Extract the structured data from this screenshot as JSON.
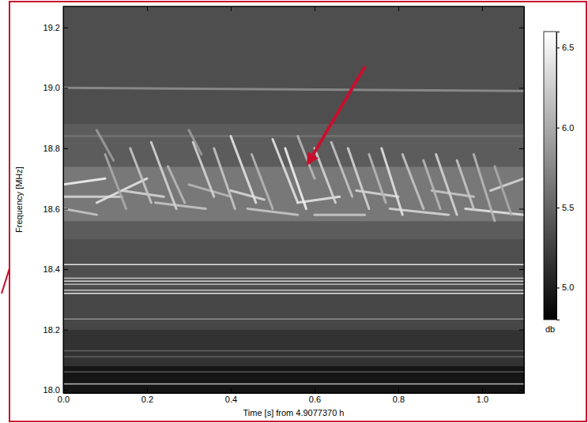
{
  "chart_data": {
    "type": "heatmap",
    "xlabel": "Time [s] from 4.9077370 h",
    "ylabel": "Frequency [MHz]",
    "xlim": [
      0,
      1.1
    ],
    "ylim": [
      17.99,
      19.27
    ],
    "xticks": [
      {
        "value": 0,
        "label": "0.0"
      },
      0.2,
      0.4,
      0.6,
      0.8,
      {
        "value": 1,
        "label": "1.0"
      }
    ],
    "yticks": [
      {
        "value": 18,
        "label": "18.0"
      },
      18.2,
      18.4,
      18.6,
      18.8,
      {
        "value": 19,
        "label": "19.0"
      },
      19.2
    ],
    "heatmap": {
      "x_edges": [
        0,
        1.1
      ],
      "y_edges": [
        17.99,
        18.08,
        18.2,
        18.32,
        18.5,
        18.56,
        18.74,
        18.88,
        19.27
      ],
      "values": [
        [
          4.95
        ],
        [
          5.15
        ],
        [
          5.3
        ],
        [
          5.35
        ],
        [
          5.45
        ],
        [
          5.65
        ],
        [
          5.45
        ],
        [
          5.35
        ]
      ]
    },
    "lines": [
      {
        "f": 18.415,
        "level": 6.4
      },
      {
        "f": 18.37,
        "level": 6.2
      },
      {
        "f": 18.36,
        "level": 6.3
      },
      {
        "f": 18.35,
        "level": 6.1
      },
      {
        "f": 18.33,
        "level": 6.2
      },
      {
        "f": 18.32,
        "level": 6.4
      },
      {
        "f": 18.235,
        "level": 5.8
      },
      {
        "f": 18.13,
        "level": 5.5
      },
      {
        "f": 18.11,
        "level": 5.5
      },
      {
        "f": 18.06,
        "level": 5.4
      },
      {
        "f": 18.02,
        "level": 6.1
      }
    ],
    "bursts": [
      {
        "t": [
          0.0,
          1.1
        ],
        "f": [
          18.84,
          18.84
        ],
        "level": 5.6
      },
      {
        "t": [
          0.0,
          1.1
        ],
        "f": [
          19.0,
          18.99
        ],
        "level": 5.8
      },
      {
        "t": [
          0.0,
          0.1
        ],
        "f": [
          18.68,
          18.7
        ],
        "level": 6.5
      },
      {
        "t": [
          0.0,
          0.14
        ],
        "f": [
          18.64,
          18.64
        ],
        "level": 6.3
      },
      {
        "t": [
          0.0,
          0.08
        ],
        "f": [
          18.6,
          18.58
        ],
        "level": 6.2
      },
      {
        "t": [
          0.08,
          0.2
        ],
        "f": [
          18.62,
          18.7
        ],
        "level": 6.4
      },
      {
        "t": [
          0.14,
          0.24
        ],
        "f": [
          18.66,
          18.64
        ],
        "level": 6.3
      },
      {
        "t": [
          0.22,
          0.34
        ],
        "f": [
          18.62,
          18.6
        ],
        "level": 6.2
      },
      {
        "t": [
          0.3,
          0.4
        ],
        "f": [
          18.68,
          18.64
        ],
        "level": 6.1
      },
      {
        "t": [
          0.4,
          0.48
        ],
        "f": [
          18.66,
          18.63
        ],
        "level": 6.3
      },
      {
        "t": [
          0.44,
          0.56
        ],
        "f": [
          18.6,
          18.58
        ],
        "level": 6.2
      },
      {
        "t": [
          0.56,
          0.66
        ],
        "f": [
          18.62,
          18.64
        ],
        "level": 6.4
      },
      {
        "t": [
          0.6,
          0.72
        ],
        "f": [
          18.58,
          18.58
        ],
        "level": 6.2
      },
      {
        "t": [
          0.7,
          0.8
        ],
        "f": [
          18.66,
          18.64
        ],
        "level": 6.3
      },
      {
        "t": [
          0.78,
          0.92
        ],
        "f": [
          18.6,
          18.58
        ],
        "level": 6.3
      },
      {
        "t": [
          0.88,
          0.98
        ],
        "f": [
          18.66,
          18.64
        ],
        "level": 6.2
      },
      {
        "t": [
          0.96,
          1.1
        ],
        "f": [
          18.6,
          18.58
        ],
        "level": 6.4
      },
      {
        "t": [
          1.02,
          1.1
        ],
        "f": [
          18.66,
          18.7
        ],
        "level": 6.3
      },
      {
        "t": [
          0.08,
          0.12
        ],
        "f": [
          18.86,
          18.76
        ],
        "level": 5.9
      },
      {
        "t": [
          0.3,
          0.33
        ],
        "f": [
          18.86,
          18.78
        ],
        "level": 5.9
      },
      {
        "t": [
          0.1,
          0.15
        ],
        "f": [
          18.78,
          18.6
        ],
        "level": 6.0
      },
      {
        "t": [
          0.16,
          0.21
        ],
        "f": [
          18.8,
          18.62
        ],
        "level": 6.2
      },
      {
        "t": [
          0.21,
          0.27
        ],
        "f": [
          18.82,
          18.6
        ],
        "level": 6.3
      },
      {
        "t": [
          0.25,
          0.29
        ],
        "f": [
          18.74,
          18.62
        ],
        "level": 6.1
      },
      {
        "t": [
          0.31,
          0.36
        ],
        "f": [
          18.82,
          18.64
        ],
        "level": 6.3
      },
      {
        "t": [
          0.36,
          0.41
        ],
        "f": [
          18.8,
          18.6
        ],
        "level": 6.2
      },
      {
        "t": [
          0.4,
          0.46
        ],
        "f": [
          18.84,
          18.62
        ],
        "level": 6.4
      },
      {
        "t": [
          0.45,
          0.5
        ],
        "f": [
          18.78,
          18.6
        ],
        "level": 6.1
      },
      {
        "t": [
          0.5,
          0.56
        ],
        "f": [
          18.83,
          18.62
        ],
        "level": 6.4
      },
      {
        "t": [
          0.53,
          0.58
        ],
        "f": [
          18.8,
          18.6
        ],
        "level": 6.5
      },
      {
        "t": [
          0.56,
          0.6
        ],
        "f": [
          18.84,
          18.7
        ],
        "level": 6.1
      },
      {
        "t": [
          0.6,
          0.65
        ],
        "f": [
          18.8,
          18.62
        ],
        "level": 6.3
      },
      {
        "t": [
          0.64,
          0.69
        ],
        "f": [
          18.82,
          18.64
        ],
        "level": 6.2
      },
      {
        "t": [
          0.68,
          0.73
        ],
        "f": [
          18.8,
          18.6
        ],
        "level": 6.3
      },
      {
        "t": [
          0.73,
          0.77
        ],
        "f": [
          18.78,
          18.62
        ],
        "level": 6.1
      },
      {
        "t": [
          0.76,
          0.81
        ],
        "f": [
          18.8,
          18.58
        ],
        "level": 6.4
      },
      {
        "t": [
          0.81,
          0.86
        ],
        "f": [
          18.78,
          18.6
        ],
        "level": 6.2
      },
      {
        "t": [
          0.86,
          0.9
        ],
        "f": [
          18.76,
          18.6
        ],
        "level": 6.1
      },
      {
        "t": [
          0.89,
          0.94
        ],
        "f": [
          18.78,
          18.58
        ],
        "level": 6.3
      },
      {
        "t": [
          0.94,
          0.98
        ],
        "f": [
          18.76,
          18.6
        ],
        "level": 6.2
      },
      {
        "t": [
          0.98,
          1.03
        ],
        "f": [
          18.78,
          18.56
        ],
        "level": 6.1
      },
      {
        "t": [
          1.03,
          1.07
        ],
        "f": [
          18.74,
          18.58
        ],
        "level": 6.0
      }
    ],
    "colorbar": {
      "range": [
        4.8,
        6.6
      ],
      "ticks": [
        {
          "value": 5,
          "label": "5.0"
        },
        5.5,
        {
          "value": 6,
          "label": "6.0"
        },
        6.5
      ],
      "label": "db"
    }
  }
}
